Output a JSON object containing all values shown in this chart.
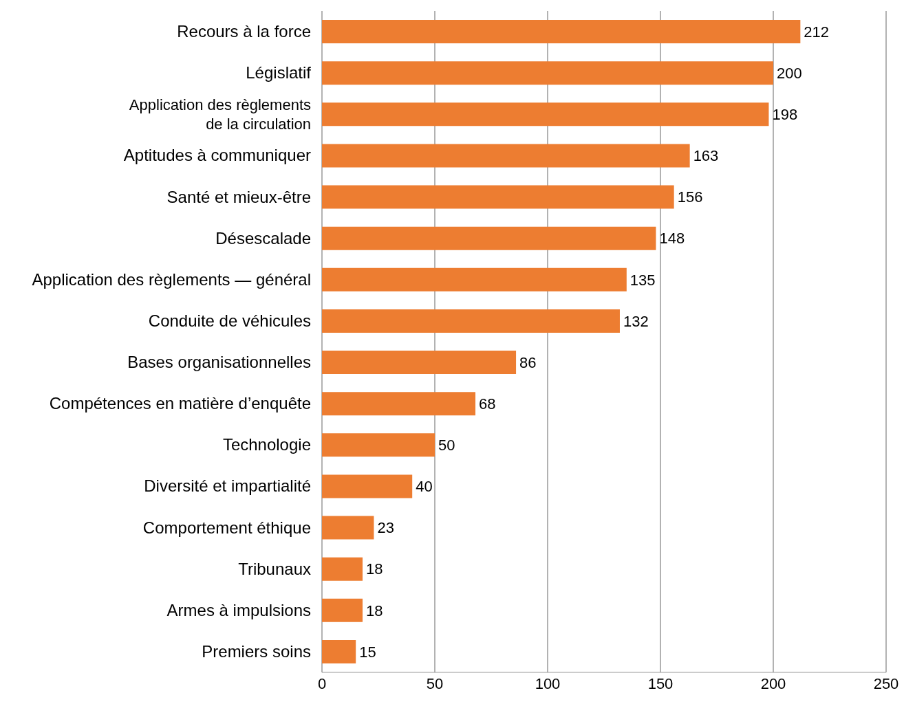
{
  "chart_data": {
    "type": "bar",
    "orientation": "horizontal",
    "categories": [
      "Recours à la force",
      "Législatif",
      "Application des règlements de la circulation",
      "Aptitudes à communiquer",
      "Santé et mieux-être",
      "Désescalade",
      "Application des règlements — général",
      "Conduite de véhicules",
      "Bases organisationnelles",
      "Compétences en matière d’enquête",
      "Technologie",
      "Diversité et impartialité",
      "Comportement éthique",
      "Tribunaux",
      "Armes à impulsions",
      "Premiers soins"
    ],
    "values": [
      212,
      200,
      198,
      163,
      156,
      148,
      135,
      132,
      86,
      68,
      50,
      40,
      23,
      18,
      18,
      15
    ],
    "color": "#ed7d31",
    "xlim": [
      0,
      250
    ],
    "xticks": [
      0,
      50,
      100,
      150,
      200,
      250
    ],
    "grid": "x",
    "data_labels": true
  }
}
